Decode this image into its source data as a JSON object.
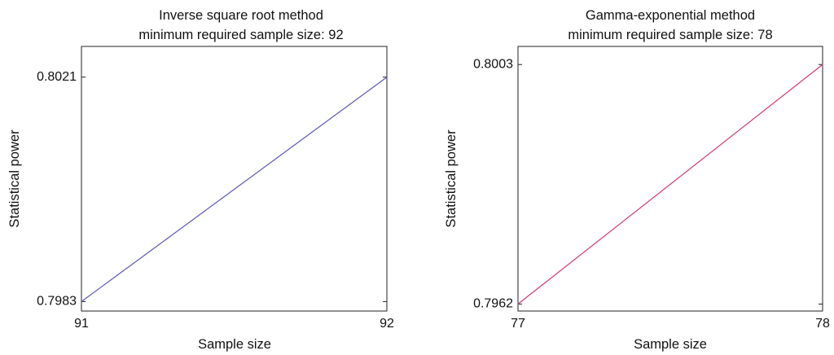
{
  "chart_data": [
    {
      "type": "line",
      "title": "Inverse square root method",
      "subtitle": "minimum required sample size: 92",
      "xlabel": "Sample size",
      "ylabel": "Statistical power",
      "x": [
        91,
        92
      ],
      "series": [
        {
          "values": [
            0.7983,
            0.8021
          ],
          "color": "#5b57b8"
        }
      ],
      "xticks": [
        "91",
        "92"
      ],
      "yticks": [
        "0.7983",
        "0.8021"
      ],
      "xlim": [
        91,
        92
      ],
      "ylim": [
        0.79814,
        0.80262
      ],
      "grid": false
    },
    {
      "type": "line",
      "title": "Gamma-exponential method",
      "subtitle": "minimum required sample size: 78",
      "xlabel": "Sample size",
      "ylabel": "Statistical power",
      "x": [
        77,
        78
      ],
      "series": [
        {
          "values": [
            0.7962,
            0.8003
          ],
          "color": "#d13a6e"
        }
      ],
      "xticks": [
        "77",
        "78"
      ],
      "yticks": [
        "0.7962",
        "0.8003"
      ],
      "xlim": [
        77,
        78
      ],
      "ylim": [
        0.79608,
        0.80061
      ],
      "grid": false
    }
  ]
}
